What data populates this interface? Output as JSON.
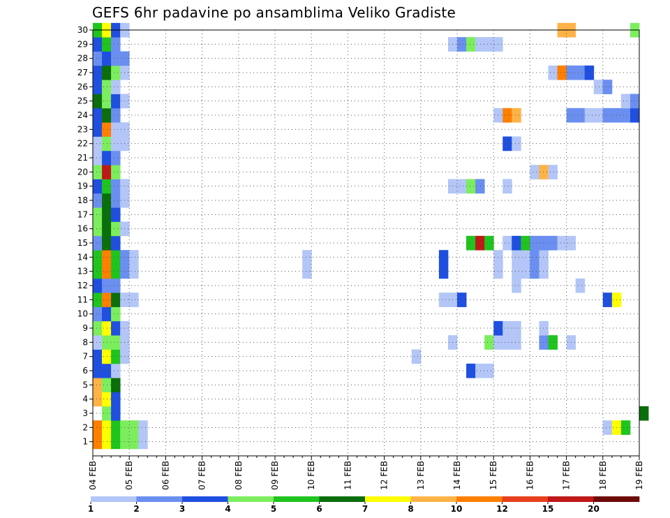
{
  "chart_data": {
    "type": "heatmap",
    "title": "GEFS 6hr padavine po ansamblima Veliko Gradiste",
    "xlabel": "",
    "ylabel": "",
    "x_ticks": [
      "04 FEB",
      "05 FEB",
      "06 FEB",
      "07 FEB",
      "08 FEB",
      "09 FEB",
      "10 FEB",
      "11 FEB",
      "12 FEB",
      "13 FEB",
      "14 FEB",
      "15 FEB",
      "16 FEB",
      "17 FEB",
      "18 FEB",
      "19 FEB"
    ],
    "x_range_days": [
      0,
      15
    ],
    "y_ticks": [
      "1",
      "2",
      "3",
      "4",
      "5",
      "6",
      "7",
      "8",
      "9",
      "10",
      "11",
      "12",
      "13",
      "14",
      "15",
      "16",
      "17",
      "18",
      "19",
      "20",
      "21",
      "22",
      "23",
      "24",
      "25",
      "26",
      "27",
      "28",
      "29",
      "30"
    ],
    "y_range": [
      0,
      30
    ],
    "grid": true,
    "time_step_hours": 6,
    "colorbar": {
      "labels": [
        "1",
        "2",
        "3",
        "4",
        "5",
        "6",
        "7",
        "8",
        "10",
        "12",
        "15",
        "20"
      ],
      "colors": [
        "#b3c6f7",
        "#6b8ff0",
        "#1f4fe0",
        "#7cee5e",
        "#1fc41f",
        "#0a6e0a",
        "#ffff00",
        "#ffb347",
        "#ff7f00",
        "#e8401c",
        "#c01818",
        "#6e0a0a"
      ]
    },
    "cells": [
      [
        1,
        0,
        9
      ],
      [
        1,
        1,
        7
      ],
      [
        1,
        2,
        5
      ],
      [
        1,
        3,
        4
      ],
      [
        1,
        4,
        4
      ],
      [
        1,
        5,
        1
      ],
      [
        2,
        0,
        9
      ],
      [
        2,
        1,
        7
      ],
      [
        2,
        2,
        5
      ],
      [
        2,
        3,
        4
      ],
      [
        2,
        4,
        4
      ],
      [
        2,
        5,
        1
      ],
      [
        2,
        56,
        1
      ],
      [
        2,
        57,
        7
      ],
      [
        2,
        58,
        5
      ],
      [
        3,
        1,
        4
      ],
      [
        3,
        2,
        3
      ],
      [
        3,
        60,
        6
      ],
      [
        4,
        0,
        8
      ],
      [
        4,
        1,
        7
      ],
      [
        4,
        2,
        3
      ],
      [
        5,
        0,
        8
      ],
      [
        5,
        1,
        4
      ],
      [
        5,
        2,
        6
      ],
      [
        6,
        0,
        3
      ],
      [
        6,
        1,
        3
      ],
      [
        6,
        2,
        1
      ],
      [
        6,
        41,
        3
      ],
      [
        6,
        42,
        1
      ],
      [
        6,
        43,
        1
      ],
      [
        7,
        0,
        3
      ],
      [
        7,
        1,
        7
      ],
      [
        7,
        2,
        5
      ],
      [
        7,
        3,
        1
      ],
      [
        7,
        35,
        1
      ],
      [
        8,
        0,
        1
      ],
      [
        8,
        1,
        4
      ],
      [
        8,
        2,
        4
      ],
      [
        8,
        3,
        1
      ],
      [
        8,
        39,
        1
      ],
      [
        8,
        43,
        4
      ],
      [
        8,
        44,
        1
      ],
      [
        8,
        45,
        1
      ],
      [
        8,
        46,
        1
      ],
      [
        8,
        49,
        2
      ],
      [
        8,
        50,
        5
      ],
      [
        8,
        52,
        1
      ],
      [
        9,
        0,
        4
      ],
      [
        9,
        1,
        7
      ],
      [
        9,
        2,
        3
      ],
      [
        9,
        3,
        1
      ],
      [
        9,
        44,
        3
      ],
      [
        9,
        45,
        1
      ],
      [
        9,
        46,
        1
      ],
      [
        9,
        49,
        1
      ],
      [
        10,
        0,
        2
      ],
      [
        10,
        1,
        3
      ],
      [
        10,
        2,
        4
      ],
      [
        11,
        0,
        5
      ],
      [
        11,
        1,
        9
      ],
      [
        11,
        2,
        6
      ],
      [
        11,
        3,
        1
      ],
      [
        11,
        4,
        1
      ],
      [
        11,
        38,
        1
      ],
      [
        11,
        39,
        1
      ],
      [
        11,
        40,
        3
      ],
      [
        11,
        56,
        3
      ],
      [
        11,
        57,
        7
      ],
      [
        12,
        0,
        3
      ],
      [
        12,
        1,
        2
      ],
      [
        12,
        2,
        2
      ],
      [
        12,
        46,
        1
      ],
      [
        12,
        53,
        1
      ],
      [
        13,
        0,
        5
      ],
      [
        13,
        1,
        9
      ],
      [
        13,
        2,
        5
      ],
      [
        13,
        3,
        2
      ],
      [
        13,
        4,
        1
      ],
      [
        13,
        23,
        1
      ],
      [
        13,
        38,
        3
      ],
      [
        13,
        44,
        1
      ],
      [
        13,
        46,
        1
      ],
      [
        13,
        47,
        1
      ],
      [
        13,
        48,
        2
      ],
      [
        13,
        49,
        1
      ],
      [
        14,
        0,
        5
      ],
      [
        14,
        1,
        9
      ],
      [
        14,
        2,
        5
      ],
      [
        14,
        3,
        2
      ],
      [
        14,
        4,
        1
      ],
      [
        14,
        23,
        1
      ],
      [
        14,
        38,
        3
      ],
      [
        14,
        44,
        1
      ],
      [
        14,
        46,
        1
      ],
      [
        14,
        47,
        1
      ],
      [
        14,
        48,
        2
      ],
      [
        14,
        49,
        1
      ],
      [
        15,
        0,
        2
      ],
      [
        15,
        1,
        6
      ],
      [
        15,
        2,
        3
      ],
      [
        15,
        41,
        5
      ],
      [
        15,
        42,
        11
      ],
      [
        15,
        43,
        5
      ],
      [
        15,
        45,
        1
      ],
      [
        15,
        46,
        3
      ],
      [
        15,
        47,
        5
      ],
      [
        15,
        48,
        2
      ],
      [
        15,
        49,
        2
      ],
      [
        15,
        50,
        2
      ],
      [
        15,
        51,
        1
      ],
      [
        15,
        52,
        1
      ],
      [
        16,
        0,
        4
      ],
      [
        16,
        1,
        6
      ],
      [
        16,
        2,
        4
      ],
      [
        16,
        3,
        1
      ],
      [
        17,
        0,
        4
      ],
      [
        17,
        1,
        6
      ],
      [
        17,
        2,
        3
      ],
      [
        18,
        0,
        2
      ],
      [
        18,
        1,
        6
      ],
      [
        18,
        2,
        2
      ],
      [
        18,
        3,
        1
      ],
      [
        19,
        0,
        3
      ],
      [
        19,
        1,
        5
      ],
      [
        19,
        2,
        2
      ],
      [
        19,
        3,
        1
      ],
      [
        19,
        39,
        1
      ],
      [
        19,
        40,
        1
      ],
      [
        19,
        41,
        4
      ],
      [
        19,
        42,
        2
      ],
      [
        19,
        45,
        1
      ],
      [
        20,
        0,
        4
      ],
      [
        20,
        1,
        11
      ],
      [
        20,
        2,
        4
      ],
      [
        20,
        48,
        1
      ],
      [
        20,
        49,
        8
      ],
      [
        20,
        50,
        1
      ],
      [
        21,
        0,
        1
      ],
      [
        21,
        1,
        3
      ],
      [
        21,
        2,
        2
      ],
      [
        22,
        0,
        1
      ],
      [
        22,
        1,
        4
      ],
      [
        22,
        2,
        1
      ],
      [
        22,
        3,
        1
      ],
      [
        22,
        45,
        3
      ],
      [
        22,
        46,
        1
      ],
      [
        23,
        0,
        3
      ],
      [
        23,
        1,
        9
      ],
      [
        23,
        2,
        1
      ],
      [
        23,
        3,
        1
      ],
      [
        24,
        0,
        3
      ],
      [
        24,
        1,
        6
      ],
      [
        24,
        2,
        2
      ],
      [
        24,
        44,
        1
      ],
      [
        24,
        45,
        9
      ],
      [
        24,
        46,
        8
      ],
      [
        24,
        52,
        2
      ],
      [
        24,
        53,
        2
      ],
      [
        24,
        54,
        1
      ],
      [
        24,
        55,
        1
      ],
      [
        24,
        56,
        2
      ],
      [
        24,
        57,
        2
      ],
      [
        24,
        58,
        2
      ],
      [
        24,
        59,
        3
      ],
      [
        25,
        0,
        6
      ],
      [
        25,
        1,
        4
      ],
      [
        25,
        2,
        3
      ],
      [
        25,
        3,
        1
      ],
      [
        25,
        58,
        1
      ],
      [
        25,
        59,
        2
      ],
      [
        26,
        0,
        3
      ],
      [
        26,
        1,
        4
      ],
      [
        26,
        2,
        1
      ],
      [
        26,
        55,
        1
      ],
      [
        26,
        56,
        2
      ],
      [
        27,
        0,
        3
      ],
      [
        27,
        1,
        6
      ],
      [
        27,
        2,
        4
      ],
      [
        27,
        3,
        1
      ],
      [
        27,
        50,
        1
      ],
      [
        27,
        51,
        9
      ],
      [
        27,
        52,
        2
      ],
      [
        27,
        53,
        2
      ],
      [
        27,
        54,
        3
      ],
      [
        28,
        0,
        2
      ],
      [
        28,
        1,
        3
      ],
      [
        28,
        2,
        2
      ],
      [
        28,
        3,
        2
      ],
      [
        29,
        0,
        3
      ],
      [
        29,
        1,
        5
      ],
      [
        29,
        2,
        2
      ],
      [
        29,
        39,
        1
      ],
      [
        29,
        40,
        2
      ],
      [
        29,
        41,
        4
      ],
      [
        29,
        42,
        1
      ],
      [
        29,
        43,
        1
      ],
      [
        29,
        44,
        1
      ],
      [
        30,
        0,
        5
      ],
      [
        30,
        1,
        7
      ],
      [
        30,
        2,
        3
      ],
      [
        30,
        3,
        1
      ],
      [
        30,
        51,
        8
      ],
      [
        30,
        52,
        8
      ],
      [
        30,
        59,
        4
      ]
    ]
  }
}
